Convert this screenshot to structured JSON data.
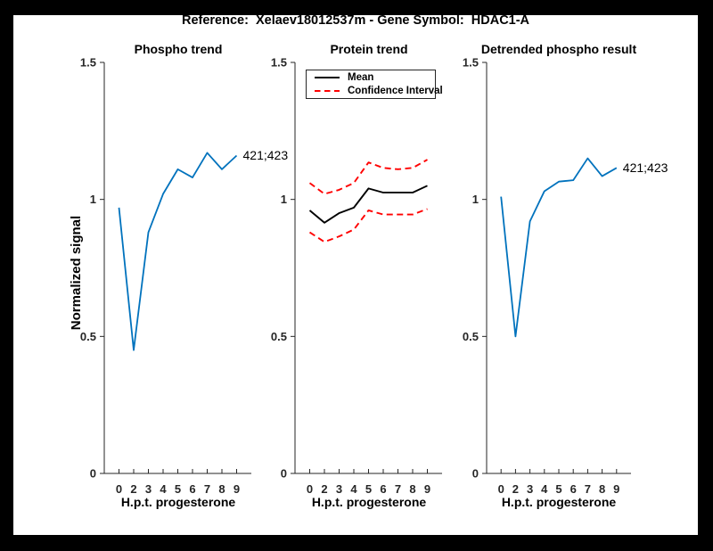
{
  "figure": {
    "title": "Reference:  Xelaev18012537m - Gene Symbol:  HDAC1-A",
    "ylabel": "Normalized signal",
    "background": "#FFFFFF",
    "frame_color": "#000000",
    "axis_color": "#262626"
  },
  "chart_data": [
    {
      "type": "line",
      "title": "Phospho trend",
      "xlabel": "H.p.t. progesterone",
      "ylabel": "Normalized signal",
      "x_tick_labels": [
        "0",
        "2",
        "3",
        "4",
        "5",
        "6",
        "7",
        "8",
        "9"
      ],
      "y_ticks": {
        "values": [
          0,
          0.5,
          1,
          1.5
        ],
        "labels": [
          "0",
          "0.5",
          "1",
          "1.5"
        ]
      },
      "ylim": [
        0,
        1.5
      ],
      "grid": false,
      "legend": null,
      "annotation": {
        "text": "421;423",
        "attach": "last-point"
      },
      "series": [
        {
          "name": "phospho-signal",
          "color": "#0072BD",
          "dash": "solid",
          "width": 1.8,
          "values": [
            0.97,
            0.45,
            0.88,
            1.02,
            1.11,
            1.08,
            1.17,
            1.11,
            1.16
          ]
        }
      ]
    },
    {
      "type": "line",
      "title": "Protein trend",
      "xlabel": "H.p.t. progesterone",
      "ylabel": "Normalized signal",
      "x_tick_labels": [
        "0",
        "2",
        "3",
        "4",
        "5",
        "6",
        "7",
        "8",
        "9"
      ],
      "y_ticks": {
        "values": [
          0,
          0.5,
          1,
          1.5
        ],
        "labels": [
          "0",
          "0.5",
          "1",
          "1.5"
        ]
      },
      "ylim": [
        0,
        1.5
      ],
      "grid": false,
      "legend": {
        "position": "top-left",
        "entries": [
          {
            "label": "Mean",
            "color": "#000000",
            "dash": "solid"
          },
          {
            "label": "Confidence Interval",
            "color": "#FF0000",
            "dash": "dashed"
          }
        ]
      },
      "annotation": null,
      "series": [
        {
          "name": "mean",
          "color": "#000000",
          "dash": "solid",
          "width": 1.9,
          "values": [
            0.96,
            0.915,
            0.95,
            0.97,
            1.04,
            1.025,
            1.025,
            1.025,
            1.05
          ]
        },
        {
          "name": "confidence-upper",
          "color": "#FF0000",
          "dash": "dashed",
          "width": 1.9,
          "values": [
            1.06,
            1.02,
            1.035,
            1.06,
            1.135,
            1.115,
            1.11,
            1.115,
            1.145
          ]
        },
        {
          "name": "confidence-lower",
          "color": "#FF0000",
          "dash": "dashed",
          "width": 1.9,
          "values": [
            0.88,
            0.845,
            0.865,
            0.89,
            0.96,
            0.945,
            0.945,
            0.945,
            0.965
          ]
        }
      ]
    },
    {
      "type": "line",
      "title": "Detrended phospho result",
      "xlabel": "H.p.t. progesterone",
      "ylabel": "Normalized signal",
      "x_tick_labels": [
        "0",
        "2",
        "3",
        "4",
        "5",
        "6",
        "7",
        "8",
        "9"
      ],
      "y_ticks": {
        "values": [
          0,
          0.5,
          1,
          1.5
        ],
        "labels": [
          "0",
          "0.5",
          "1",
          "1.5"
        ]
      },
      "ylim": [
        0,
        1.5
      ],
      "grid": false,
      "legend": null,
      "annotation": {
        "text": "421;423",
        "attach": "last-point"
      },
      "series": [
        {
          "name": "detrended-phospho-signal",
          "color": "#0072BD",
          "dash": "solid",
          "width": 1.8,
          "values": [
            1.01,
            0.5,
            0.92,
            1.03,
            1.065,
            1.07,
            1.15,
            1.085,
            1.115
          ]
        }
      ]
    }
  ]
}
